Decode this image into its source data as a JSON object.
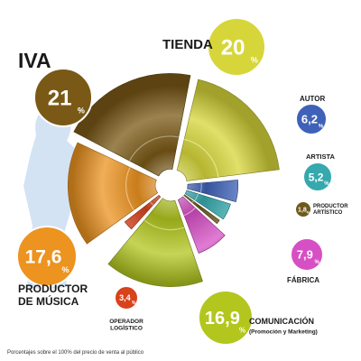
{
  "chart_data": {
    "type": "pie",
    "title": "",
    "unit": "%",
    "slices": [
      {
        "label": "TIENDA",
        "sublabel": "",
        "value": 20,
        "display": "20",
        "color": "#d6d63a"
      },
      {
        "label": "AUTOR",
        "sublabel": "",
        "value": 6.2,
        "display": "6,2",
        "color": "#3f62b8"
      },
      {
        "label": "ARTISTA",
        "sublabel": "",
        "value": 5.2,
        "display": "5,2",
        "color": "#35a9ad"
      },
      {
        "label": "PRODUCTOR",
        "sublabel": "ARTÍSTICO",
        "value": 1.8,
        "display": "1,8",
        "color": "#6e5a1c"
      },
      {
        "label": "FÁBRICA",
        "sublabel": "",
        "value": 7.9,
        "display": "7,9",
        "color": "#d64fc4"
      },
      {
        "label": "COMUNICACIÓN",
        "sublabel": "(Promoción y Marketing)",
        "value": 16.9,
        "display": "16,9",
        "color": "#b2c61e"
      },
      {
        "label": "OPERADOR",
        "sublabel": "LOGÍSTICO",
        "value": 3.4,
        "display": "3,4",
        "color": "#d8431c"
      },
      {
        "label": "PRODUCTOR",
        "sublabel": "DE MÚSICA",
        "value": 17.6,
        "display": "17,6",
        "color": "#ec9320"
      },
      {
        "label": "IVA",
        "sublabel": "",
        "value": 21,
        "display": "21",
        "color": "#7a5916"
      }
    ],
    "footnote": "Porcentajes sobre el 100% del precio de venta al público"
  }
}
